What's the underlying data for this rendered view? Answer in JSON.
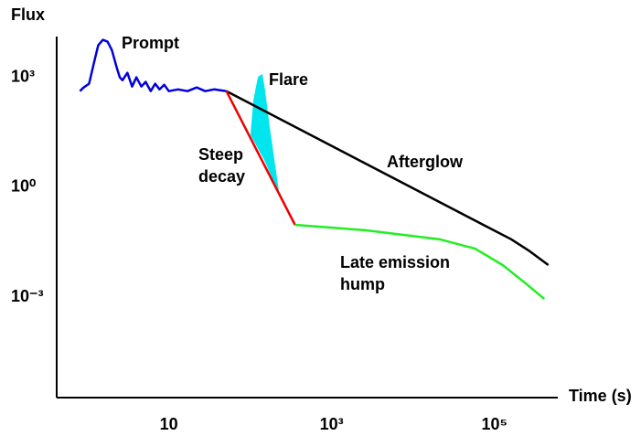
{
  "chart_data": {
    "type": "line",
    "xlabel": "Time (s)",
    "ylabel": "Flux",
    "xscale": "log",
    "yscale": "log",
    "xlim": [
      0.42,
      600000
    ],
    "ylim": [
      1.8e-06,
      13000
    ],
    "xticks": [
      10,
      {
        "value": 1000,
        "label": "10³"
      },
      {
        "value": 100000,
        "label": "10⁵"
      }
    ],
    "yticks": [
      {
        "value": 1000,
        "label": "10³"
      },
      {
        "value": 1,
        "label": "10⁰"
      },
      {
        "value": 0.001,
        "label": "10⁻³"
      }
    ],
    "grid": false,
    "series": [
      {
        "name": "Prompt",
        "color": "#0000dd",
        "x": [
          0.81,
          0.9,
          1.05,
          1.2,
          1.36,
          1.55,
          1.77,
          2.0,
          2.3,
          2.5,
          2.7,
          3.1,
          3.55,
          4.0,
          4.6,
          5.2,
          6.0,
          6.8,
          7.7,
          8.8,
          10,
          13,
          17,
          22,
          28,
          36,
          51
        ],
        "values": [
          420,
          530,
          670,
          2400,
          7500,
          10600,
          9400,
          5600,
          1800,
          1000,
          840,
          1330,
          560,
          1000,
          560,
          750,
          420,
          670,
          470,
          630,
          420,
          470,
          420,
          530,
          420,
          470,
          420
        ]
      },
      {
        "name": "Afterglow",
        "color": "#000000",
        "x": [
          51,
          98000,
          160000,
          270000,
          460000
        ],
        "values": [
          420,
          0.067,
          0.038,
          0.018,
          0.0075
        ]
      },
      {
        "name": "Steep decay",
        "color": "#ee0000",
        "x": [
          51,
          355
        ],
        "values": [
          420,
          0.094
        ]
      },
      {
        "name": "Late emission hump",
        "color": "#22ee22",
        "x": [
          355,
          2600,
          21000,
          58000,
          126000,
          240000,
          410000
        ],
        "values": [
          0.094,
          0.067,
          0.038,
          0.021,
          0.0075,
          0.0024,
          0.00089
        ]
      },
      {
        "name": "Flare",
        "color": "#00e5ee",
        "filled": true,
        "x": [
          102,
          111,
          126,
          140,
          151,
          172,
          196,
          223,
          151
        ],
        "values": [
          27,
          240,
          1000,
          1190,
          420,
          42,
          5.6,
          0.75,
          5.6
        ]
      }
    ]
  }
}
